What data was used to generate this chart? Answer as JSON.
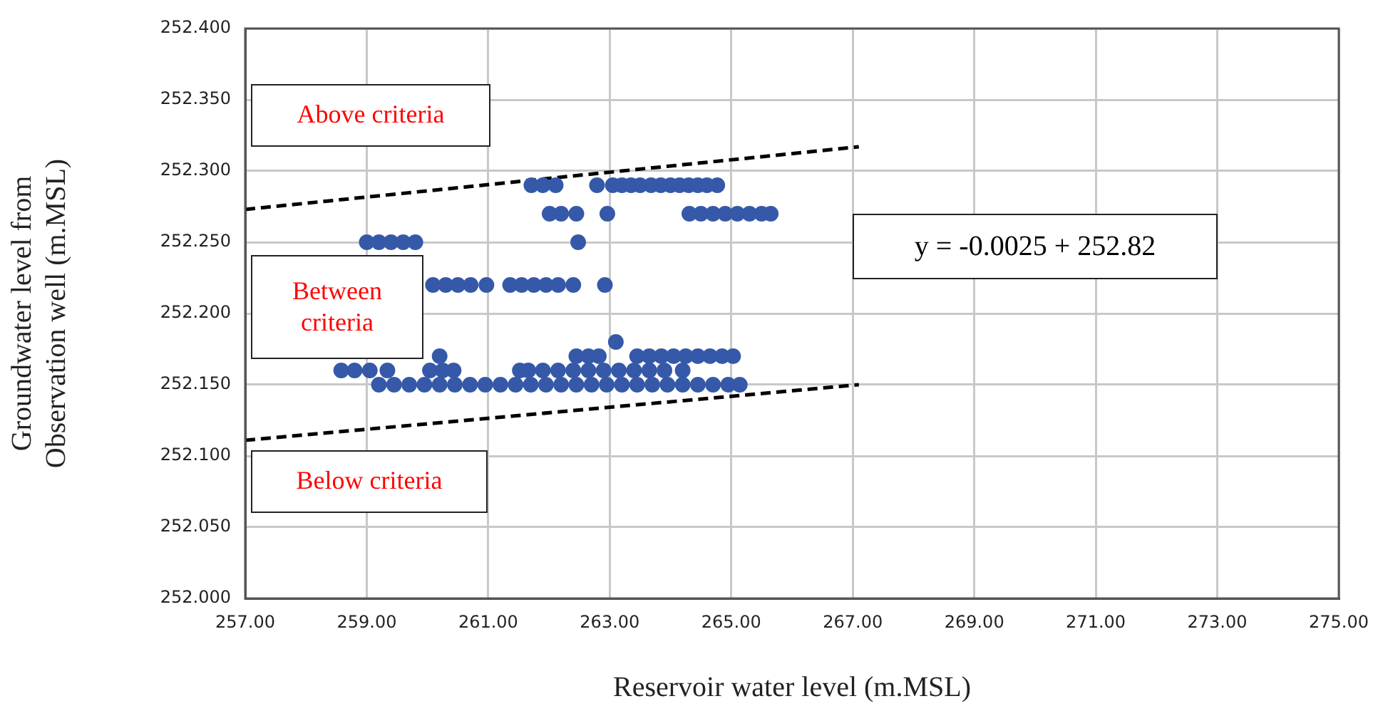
{
  "chart_data": {
    "type": "scatter",
    "xlabel": "Reservoir water level (m.MSL)",
    "ylabel": "Groundwater level from Observation well (m.MSL)",
    "xlim": [
      257,
      275
    ],
    "xticks": [
      {
        "value": 257,
        "label": "257.00"
      },
      {
        "value": 259,
        "label": "259.00"
      },
      {
        "value": 261,
        "label": "261.00"
      },
      {
        "value": 263,
        "label": "263.00"
      },
      {
        "value": 265,
        "label": "265.00"
      },
      {
        "value": 267,
        "label": "267.00"
      },
      {
        "value": 269,
        "label": "269.00"
      },
      {
        "value": 271,
        "label": "271.00"
      },
      {
        "value": 273,
        "label": "273.00"
      },
      {
        "value": 275,
        "label": "275.00"
      }
    ],
    "ylim": [
      252.0,
      252.4
    ],
    "yticks": [
      {
        "value": 252.0,
        "label": "252.000"
      },
      {
        "value": 252.05,
        "label": "252.050"
      },
      {
        "value": 252.1,
        "label": "252.100"
      },
      {
        "value": 252.15,
        "label": "252.150"
      },
      {
        "value": 252.2,
        "label": "252.200"
      },
      {
        "value": 252.25,
        "label": "252.250"
      },
      {
        "value": 252.3,
        "label": "252.300"
      },
      {
        "value": 252.35,
        "label": "252.350"
      },
      {
        "value": 252.4,
        "label": "252.400"
      }
    ],
    "grid": true,
    "marker": "circle",
    "annotations": [
      "Above criteria",
      "Between criteria",
      "Below criteria",
      "y = -0.0025 + 252.82"
    ],
    "series": [
      {
        "type": "scatter",
        "color": "#3559a8",
        "x": [
          261.71,
          261.9,
          262.11,
          262.79,
          263.05,
          263.2,
          263.35,
          263.5,
          263.68,
          263.84,
          264.0,
          264.15,
          264.3,
          264.45,
          264.6,
          264.77,
          262.01,
          262.2,
          262.45,
          262.96,
          264.31,
          264.5,
          264.7,
          264.9,
          265.1,
          265.3,
          265.5,
          265.65,
          259.0,
          259.2,
          259.4,
          259.6,
          259.8,
          262.48,
          260.09,
          260.3,
          260.5,
          260.71,
          260.97,
          261.36,
          261.55,
          261.75,
          261.95,
          262.15,
          262.4,
          262.92,
          263.1,
          260.2,
          262.45,
          262.65,
          262.82,
          263.45,
          263.65,
          263.85,
          264.05,
          264.25,
          264.45,
          264.65,
          264.85,
          265.03,
          258.58,
          258.8,
          259.05,
          259.34,
          260.04,
          260.25,
          260.43,
          261.52,
          261.66,
          261.9,
          262.15,
          262.4,
          262.65,
          262.9,
          263.15,
          263.4,
          263.65,
          263.9,
          264.2,
          259.2,
          259.45,
          259.7,
          259.95,
          260.2,
          260.45,
          260.7,
          260.95,
          261.2,
          261.45,
          261.7,
          261.95,
          262.2,
          262.45,
          262.7,
          262.95,
          263.2,
          263.45,
          263.7,
          263.95,
          264.2,
          264.45,
          264.7,
          264.95,
          265.14
        ],
        "values": [
          252.29,
          252.29,
          252.29,
          252.29,
          252.29,
          252.29,
          252.29,
          252.29,
          252.29,
          252.29,
          252.29,
          252.29,
          252.29,
          252.29,
          252.29,
          252.29,
          252.27,
          252.27,
          252.27,
          252.27,
          252.27,
          252.27,
          252.27,
          252.27,
          252.27,
          252.27,
          252.27,
          252.27,
          252.25,
          252.25,
          252.25,
          252.25,
          252.25,
          252.25,
          252.22,
          252.22,
          252.22,
          252.22,
          252.22,
          252.22,
          252.22,
          252.22,
          252.22,
          252.22,
          252.22,
          252.22,
          252.18,
          252.17,
          252.17,
          252.17,
          252.17,
          252.17,
          252.17,
          252.17,
          252.17,
          252.17,
          252.17,
          252.17,
          252.17,
          252.17,
          252.16,
          252.16,
          252.16,
          252.16,
          252.16,
          252.16,
          252.16,
          252.16,
          252.16,
          252.16,
          252.16,
          252.16,
          252.16,
          252.16,
          252.16,
          252.16,
          252.16,
          252.16,
          252.16,
          252.15,
          252.15,
          252.15,
          252.15,
          252.15,
          252.15,
          252.15,
          252.15,
          252.15,
          252.15,
          252.15,
          252.15,
          252.15,
          252.15,
          252.15,
          252.15,
          252.15,
          252.15,
          252.15,
          252.15,
          252.15,
          252.15,
          252.15,
          252.15,
          252.15
        ]
      },
      {
        "type": "line",
        "color": "#000000",
        "line_style": "dashed",
        "marker": "none",
        "x": [
          257,
          267.1
        ],
        "values": [
          252.273,
          252.317
        ]
      },
      {
        "type": "line",
        "color": "#000000",
        "line_style": "dashed",
        "marker": "none",
        "x": [
          257,
          267.1
        ],
        "values": [
          252.111,
          252.15
        ]
      }
    ]
  }
}
